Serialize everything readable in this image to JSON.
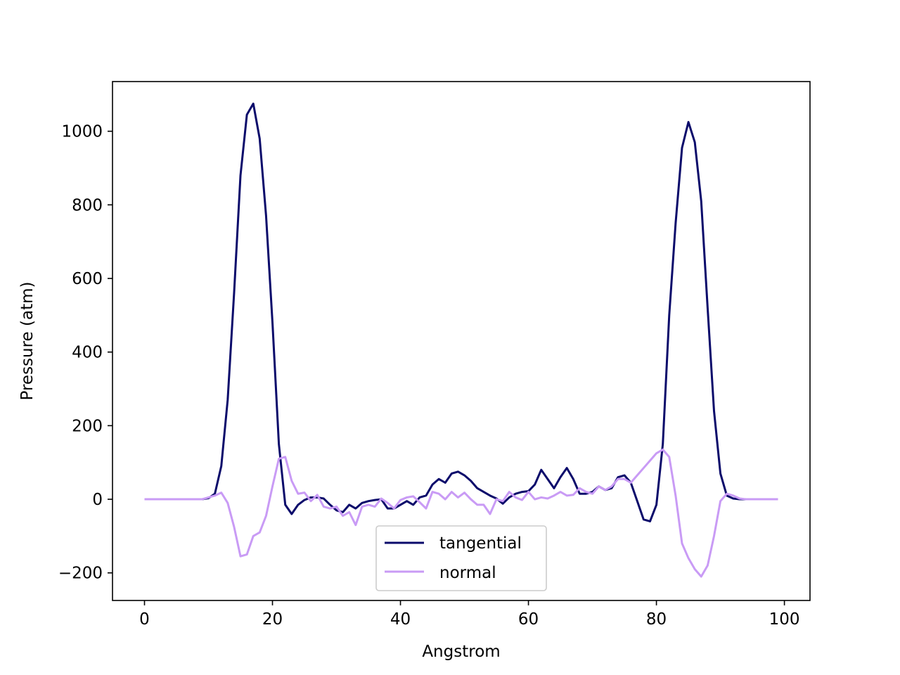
{
  "chart_data": {
    "type": "line",
    "xlabel": "Angstrom",
    "ylabel": "Pressure (atm)",
    "xlim": [
      -5,
      104
    ],
    "ylim": [
      -275,
      1135
    ],
    "xticks": [
      0,
      20,
      40,
      60,
      80,
      100
    ],
    "xtick_labels": [
      "0",
      "20",
      "40",
      "60",
      "80",
      "100"
    ],
    "yticks": [
      -200,
      0,
      200,
      400,
      600,
      800,
      1000
    ],
    "ytick_labels": [
      "−200",
      "0",
      "200",
      "400",
      "600",
      "800",
      "1000"
    ],
    "grid": false,
    "legend_position": "bottom-center",
    "x": [
      0,
      1,
      2,
      3,
      4,
      5,
      6,
      7,
      8,
      9,
      10,
      11,
      12,
      13,
      14,
      15,
      16,
      17,
      18,
      19,
      20,
      21,
      22,
      23,
      24,
      25,
      26,
      27,
      28,
      29,
      30,
      31,
      32,
      33,
      34,
      35,
      36,
      37,
      38,
      39,
      40,
      41,
      42,
      43,
      44,
      45,
      46,
      47,
      48,
      49,
      50,
      51,
      52,
      53,
      54,
      55,
      56,
      57,
      58,
      59,
      60,
      61,
      62,
      63,
      64,
      65,
      66,
      67,
      68,
      69,
      70,
      71,
      72,
      73,
      74,
      75,
      76,
      77,
      78,
      79,
      80,
      81,
      82,
      83,
      84,
      85,
      86,
      87,
      88,
      89,
      90,
      91,
      92,
      93,
      94,
      95,
      96,
      97,
      98,
      99
    ],
    "series": [
      {
        "name": "tangential",
        "color": "#0b0b6b",
        "values": [
          0,
          0,
          0,
          0,
          0,
          0,
          0,
          0,
          0,
          0,
          3,
          15,
          90,
          270,
          560,
          880,
          1045,
          1075,
          980,
          770,
          480,
          150,
          -15,
          -40,
          -15,
          -2,
          5,
          5,
          2,
          -15,
          -30,
          -35,
          -15,
          -25,
          -10,
          -5,
          -2,
          0,
          -25,
          -25,
          -15,
          -5,
          -15,
          5,
          10,
          40,
          55,
          45,
          70,
          75,
          65,
          50,
          30,
          20,
          10,
          2,
          -12,
          5,
          15,
          20,
          22,
          40,
          80,
          55,
          30,
          60,
          85,
          55,
          15,
          15,
          20,
          35,
          25,
          30,
          60,
          65,
          45,
          -5,
          -55,
          -60,
          -15,
          150,
          500,
          750,
          955,
          1025,
          970,
          810,
          520,
          240,
          70,
          10,
          2,
          0,
          0,
          0,
          0,
          0,
          0,
          0
        ]
      },
      {
        "name": "normal",
        "color": "#c99bf5",
        "values": [
          0,
          0,
          0,
          0,
          0,
          0,
          0,
          0,
          0,
          0,
          5,
          10,
          18,
          -10,
          -75,
          -155,
          -150,
          -100,
          -90,
          -45,
          35,
          110,
          115,
          50,
          15,
          18,
          -5,
          12,
          -20,
          -25,
          -20,
          -45,
          -35,
          -70,
          -20,
          -15,
          -20,
          2,
          -10,
          -25,
          -2,
          5,
          8,
          -8,
          -25,
          20,
          15,
          0,
          20,
          5,
          18,
          0,
          -15,
          -15,
          -40,
          0,
          -5,
          20,
          5,
          -2,
          20,
          0,
          5,
          2,
          10,
          20,
          10,
          12,
          30,
          20,
          15,
          35,
          25,
          35,
          55,
          55,
          45,
          65,
          85,
          105,
          125,
          135,
          115,
          10,
          -120,
          -160,
          -190,
          -210,
          -180,
          -100,
          -5,
          15,
          10,
          2,
          0,
          0,
          0,
          0,
          0,
          0
        ]
      }
    ]
  }
}
